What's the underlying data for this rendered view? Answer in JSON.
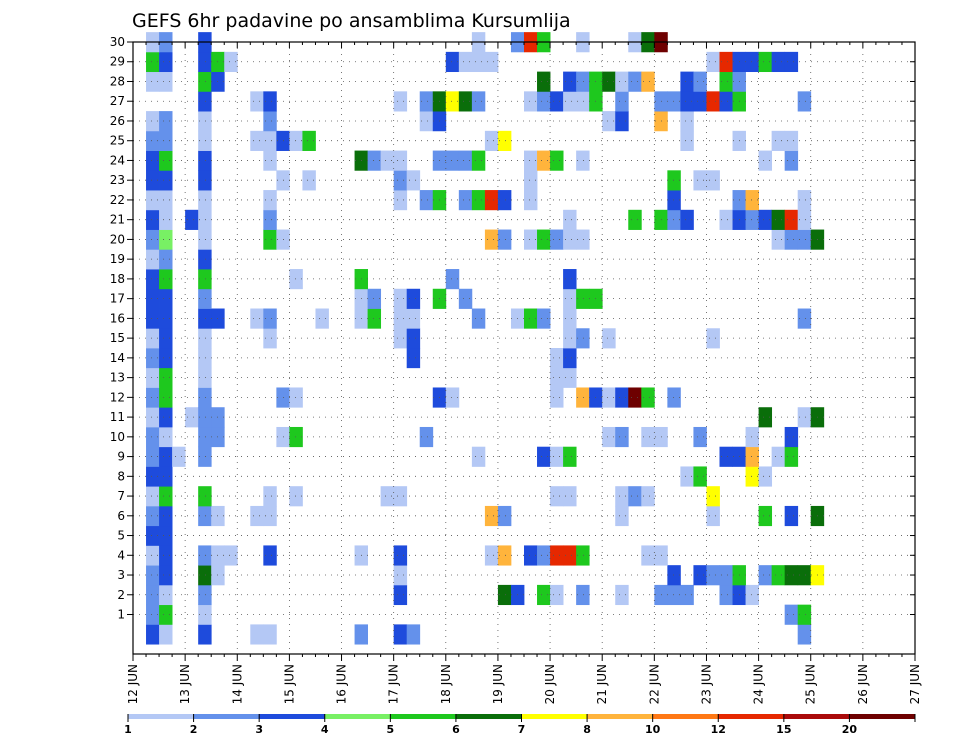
{
  "chart_data": {
    "type": "heatmap",
    "title": "GEFS 6hr padavine po ansamblima Kursumlija",
    "xlabel": "",
    "ylabel": "",
    "x_ticks": [
      "12 JUN",
      "13 JUN",
      "14 JUN",
      "15 JUN",
      "16 JUN",
      "17 JUN",
      "18 JUN",
      "19 JUN",
      "20 JUN",
      "21 JUN",
      "22 JUN",
      "23 JUN",
      "24 JUN",
      "25 JUN",
      "26 JUN",
      "27 JUN"
    ],
    "x_range": [
      "12 JUN 00UTC",
      "27 JUN 00UTC"
    ],
    "steps_per_day": 4,
    "y_ticks": [
      1,
      2,
      3,
      4,
      5,
      6,
      7,
      8,
      9,
      10,
      11,
      12,
      13,
      14,
      15,
      16,
      17,
      18,
      19,
      20,
      21,
      22,
      23,
      24,
      25,
      26,
      27,
      28,
      29,
      30
    ],
    "ylim": [
      0,
      30
    ],
    "grid": "dotted",
    "legend": {
      "placement": "bottom",
      "labels": [
        "1",
        "2",
        "3",
        "4",
        "5",
        "6",
        "7",
        "8",
        "10",
        "12",
        "15",
        "20"
      ],
      "colors": [
        "#b4c8f5",
        "#6491eb",
        "#1e4bdc",
        "#78f064",
        "#1ec81e",
        "#0a6e0a",
        "#ffff00",
        "#ffb43c",
        "#ff7814",
        "#e62800",
        "#aa0a0a",
        "#6e0000"
      ]
    },
    "cells": {
      "30": [
        [
          1,
          1
        ],
        [
          2,
          2
        ],
        [
          5,
          3
        ],
        [
          26,
          1
        ],
        [
          29,
          2
        ],
        [
          30,
          10
        ],
        [
          31,
          5
        ],
        [
          34,
          1
        ],
        [
          38,
          1
        ],
        [
          39,
          6
        ],
        [
          40,
          12
        ]
      ],
      "29": [
        [
          1,
          5
        ],
        [
          2,
          3
        ],
        [
          5,
          3
        ],
        [
          6,
          5
        ],
        [
          7,
          1
        ],
        [
          24,
          3
        ],
        [
          25,
          1
        ],
        [
          26,
          1
        ],
        [
          27,
          1
        ],
        [
          44,
          1
        ],
        [
          45,
          10
        ],
        [
          46,
          3
        ],
        [
          47,
          3
        ],
        [
          48,
          5
        ],
        [
          49,
          3
        ],
        [
          50,
          3
        ]
      ],
      "28": [
        [
          1,
          1
        ],
        [
          2,
          1
        ],
        [
          5,
          5
        ],
        [
          6,
          3
        ],
        [
          31,
          6
        ],
        [
          33,
          3
        ],
        [
          34,
          2
        ],
        [
          35,
          5
        ],
        [
          36,
          6
        ],
        [
          37,
          1
        ],
        [
          38,
          2
        ],
        [
          39,
          8
        ],
        [
          42,
          3
        ],
        [
          43,
          2
        ],
        [
          45,
          5
        ],
        [
          46,
          2
        ]
      ],
      "27": [
        [
          5,
          3
        ],
        [
          9,
          1
        ],
        [
          10,
          3
        ],
        [
          20,
          1
        ],
        [
          22,
          2
        ],
        [
          23,
          6
        ],
        [
          24,
          7
        ],
        [
          25,
          6
        ],
        [
          26,
          2
        ],
        [
          30,
          1
        ],
        [
          31,
          2
        ],
        [
          32,
          3
        ],
        [
          33,
          1
        ],
        [
          34,
          1
        ],
        [
          35,
          5
        ],
        [
          37,
          2
        ],
        [
          40,
          2
        ],
        [
          41,
          2
        ],
        [
          42,
          3
        ],
        [
          43,
          3
        ],
        [
          44,
          10
        ],
        [
          45,
          3
        ],
        [
          46,
          5
        ],
        [
          51,
          2
        ]
      ],
      "26": [
        [
          1,
          1
        ],
        [
          2,
          2
        ],
        [
          5,
          1
        ],
        [
          10,
          2
        ],
        [
          22,
          1
        ],
        [
          23,
          3
        ],
        [
          36,
          1
        ],
        [
          37,
          3
        ],
        [
          40,
          8
        ],
        [
          42,
          1
        ]
      ],
      "25": [
        [
          1,
          2
        ],
        [
          2,
          2
        ],
        [
          5,
          1
        ],
        [
          9,
          1
        ],
        [
          10,
          1
        ],
        [
          11,
          3
        ],
        [
          12,
          1
        ],
        [
          13,
          5
        ],
        [
          27,
          1
        ],
        [
          28,
          7
        ],
        [
          42,
          1
        ],
        [
          46,
          1
        ],
        [
          49,
          1
        ],
        [
          50,
          1
        ]
      ],
      "24": [
        [
          1,
          3
        ],
        [
          2,
          5
        ],
        [
          5,
          3
        ],
        [
          10,
          1
        ],
        [
          17,
          6
        ],
        [
          18,
          2
        ],
        [
          19,
          1
        ],
        [
          20,
          1
        ],
        [
          23,
          2
        ],
        [
          24,
          2
        ],
        [
          25,
          2
        ],
        [
          26,
          5
        ],
        [
          30,
          1
        ],
        [
          31,
          8
        ],
        [
          32,
          5
        ],
        [
          34,
          1
        ],
        [
          48,
          1
        ],
        [
          50,
          2
        ]
      ],
      "23": [
        [
          1,
          3
        ],
        [
          2,
          3
        ],
        [
          5,
          3
        ],
        [
          11,
          1
        ],
        [
          13,
          1
        ],
        [
          20,
          2
        ],
        [
          21,
          1
        ],
        [
          30,
          1
        ],
        [
          41,
          5
        ],
        [
          43,
          1
        ],
        [
          44,
          1
        ]
      ],
      "22": [
        [
          1,
          1
        ],
        [
          2,
          1
        ],
        [
          5,
          1
        ],
        [
          10,
          1
        ],
        [
          20,
          1
        ],
        [
          22,
          2
        ],
        [
          23,
          5
        ],
        [
          25,
          2
        ],
        [
          26,
          5
        ],
        [
          27,
          10
        ],
        [
          28,
          3
        ],
        [
          30,
          1
        ],
        [
          41,
          3
        ],
        [
          46,
          2
        ],
        [
          47,
          8
        ],
        [
          51,
          1
        ]
      ],
      "21": [
        [
          1,
          3
        ],
        [
          2,
          1
        ],
        [
          4,
          3
        ],
        [
          5,
          1
        ],
        [
          10,
          2
        ],
        [
          33,
          1
        ],
        [
          38,
          5
        ],
        [
          40,
          5
        ],
        [
          41,
          2
        ],
        [
          42,
          3
        ],
        [
          45,
          1
        ],
        [
          46,
          3
        ],
        [
          47,
          2
        ],
        [
          48,
          3
        ],
        [
          49,
          6
        ],
        [
          50,
          10
        ],
        [
          51,
          1
        ]
      ],
      "20": [
        [
          1,
          2
        ],
        [
          2,
          4
        ],
        [
          5,
          1
        ],
        [
          10,
          5
        ],
        [
          11,
          1
        ],
        [
          27,
          8
        ],
        [
          28,
          2
        ],
        [
          30,
          1
        ],
        [
          31,
          5
        ],
        [
          32,
          2
        ],
        [
          33,
          1
        ],
        [
          34,
          1
        ],
        [
          49,
          1
        ],
        [
          50,
          2
        ],
        [
          51,
          2
        ],
        [
          52,
          6
        ]
      ],
      "19": [
        [
          1,
          1
        ],
        [
          2,
          2
        ],
        [
          5,
          3
        ]
      ],
      "18": [
        [
          1,
          3
        ],
        [
          2,
          5
        ],
        [
          5,
          5
        ],
        [
          12,
          1
        ],
        [
          17,
          5
        ],
        [
          24,
          2
        ],
        [
          33,
          3
        ]
      ],
      "17": [
        [
          1,
          3
        ],
        [
          2,
          3
        ],
        [
          5,
          2
        ],
        [
          17,
          1
        ],
        [
          18,
          2
        ],
        [
          20,
          1
        ],
        [
          21,
          3
        ],
        [
          23,
          5
        ],
        [
          25,
          2
        ],
        [
          33,
          1
        ],
        [
          34,
          5
        ],
        [
          35,
          5
        ]
      ],
      "16": [
        [
          1,
          3
        ],
        [
          2,
          3
        ],
        [
          5,
          3
        ],
        [
          6,
          3
        ],
        [
          9,
          1
        ],
        [
          10,
          2
        ],
        [
          14,
          1
        ],
        [
          17,
          1
        ],
        [
          18,
          5
        ],
        [
          20,
          1
        ],
        [
          21,
          1
        ],
        [
          26,
          2
        ],
        [
          29,
          1
        ],
        [
          30,
          5
        ],
        [
          31,
          2
        ],
        [
          33,
          1
        ],
        [
          51,
          2
        ]
      ],
      "15": [
        [
          1,
          1
        ],
        [
          2,
          3
        ],
        [
          5,
          1
        ],
        [
          10,
          1
        ],
        [
          20,
          1
        ],
        [
          21,
          3
        ],
        [
          33,
          1
        ],
        [
          34,
          2
        ],
        [
          36,
          1
        ],
        [
          44,
          1
        ]
      ],
      "14": [
        [
          1,
          2
        ],
        [
          2,
          3
        ],
        [
          5,
          1
        ],
        [
          21,
          3
        ],
        [
          32,
          1
        ],
        [
          33,
          3
        ]
      ],
      "13": [
        [
          1,
          1
        ],
        [
          2,
          5
        ],
        [
          5,
          1
        ],
        [
          32,
          1
        ],
        [
          33,
          1
        ]
      ],
      "12": [
        [
          1,
          2
        ],
        [
          2,
          5
        ],
        [
          5,
          2
        ],
        [
          11,
          2
        ],
        [
          12,
          1
        ],
        [
          23,
          3
        ],
        [
          24,
          1
        ],
        [
          32,
          1
        ],
        [
          34,
          8
        ],
        [
          35,
          3
        ],
        [
          36,
          1
        ],
        [
          37,
          3
        ],
        [
          38,
          12
        ],
        [
          39,
          5
        ],
        [
          41,
          2
        ]
      ],
      "11": [
        [
          1,
          1
        ],
        [
          2,
          3
        ],
        [
          4,
          1
        ],
        [
          5,
          2
        ],
        [
          6,
          2
        ],
        [
          48,
          6
        ],
        [
          51,
          1
        ],
        [
          52,
          6
        ]
      ],
      "10": [
        [
          1,
          2
        ],
        [
          2,
          1
        ],
        [
          5,
          2
        ],
        [
          6,
          2
        ],
        [
          11,
          1
        ],
        [
          12,
          5
        ],
        [
          22,
          2
        ],
        [
          36,
          1
        ],
        [
          37,
          2
        ],
        [
          39,
          1
        ],
        [
          40,
          1
        ],
        [
          43,
          2
        ],
        [
          47,
          1
        ],
        [
          50,
          3
        ]
      ],
      "9": [
        [
          1,
          2
        ],
        [
          2,
          3
        ],
        [
          3,
          1
        ],
        [
          5,
          2
        ],
        [
          26,
          1
        ],
        [
          31,
          3
        ],
        [
          32,
          1
        ],
        [
          33,
          5
        ],
        [
          45,
          3
        ],
        [
          46,
          3
        ],
        [
          47,
          8
        ],
        [
          49,
          1
        ],
        [
          50,
          5
        ]
      ],
      "8": [
        [
          1,
          3
        ],
        [
          2,
          3
        ],
        [
          42,
          1
        ],
        [
          43,
          5
        ],
        [
          47,
          7
        ],
        [
          48,
          1
        ]
      ],
      "7": [
        [
          1,
          1
        ],
        [
          2,
          5
        ],
        [
          5,
          5
        ],
        [
          10,
          1
        ],
        [
          12,
          1
        ],
        [
          19,
          1
        ],
        [
          20,
          1
        ],
        [
          32,
          1
        ],
        [
          33,
          1
        ],
        [
          37,
          1
        ],
        [
          38,
          2
        ],
        [
          39,
          1
        ],
        [
          44,
          7
        ]
      ],
      "6": [
        [
          1,
          2
        ],
        [
          2,
          3
        ],
        [
          5,
          2
        ],
        [
          6,
          1
        ],
        [
          9,
          1
        ],
        [
          10,
          1
        ],
        [
          27,
          8
        ],
        [
          28,
          2
        ],
        [
          37,
          1
        ],
        [
          44,
          1
        ],
        [
          48,
          5
        ],
        [
          50,
          3
        ],
        [
          52,
          6
        ]
      ],
      "5": [
        [
          1,
          3
        ],
        [
          2,
          3
        ]
      ],
      "4": [
        [
          1,
          1
        ],
        [
          2,
          3
        ],
        [
          5,
          2
        ],
        [
          6,
          1
        ],
        [
          7,
          1
        ],
        [
          10,
          3
        ],
        [
          17,
          1
        ],
        [
          20,
          3
        ],
        [
          27,
          1
        ],
        [
          28,
          8
        ],
        [
          30,
          3
        ],
        [
          31,
          2
        ],
        [
          32,
          10
        ],
        [
          33,
          10
        ],
        [
          34,
          5
        ],
        [
          39,
          1
        ],
        [
          40,
          1
        ]
      ],
      "3": [
        [
          1,
          2
        ],
        [
          2,
          3
        ],
        [
          5,
          6
        ],
        [
          6,
          1
        ],
        [
          20,
          1
        ],
        [
          41,
          3
        ],
        [
          43,
          3
        ],
        [
          44,
          2
        ],
        [
          45,
          2
        ],
        [
          46,
          5
        ],
        [
          48,
          2
        ],
        [
          49,
          5
        ],
        [
          50,
          6
        ],
        [
          51,
          6
        ],
        [
          52,
          7
        ]
      ],
      "2": [
        [
          1,
          2
        ],
        [
          2,
          1
        ],
        [
          5,
          2
        ],
        [
          20,
          3
        ],
        [
          28,
          6
        ],
        [
          29,
          3
        ],
        [
          31,
          5
        ],
        [
          32,
          1
        ],
        [
          34,
          2
        ],
        [
          37,
          1
        ],
        [
          40,
          2
        ],
        [
          41,
          2
        ],
        [
          42,
          2
        ],
        [
          45,
          2
        ],
        [
          46,
          3
        ],
        [
          47,
          1
        ]
      ],
      "1": [
        [
          1,
          2
        ],
        [
          2,
          5
        ],
        [
          5,
          1
        ],
        [
          50,
          2
        ],
        [
          51,
          5
        ]
      ],
      "0": [
        [
          1,
          3
        ],
        [
          2,
          1
        ],
        [
          5,
          3
        ],
        [
          9,
          1
        ],
        [
          10,
          1
        ],
        [
          17,
          2
        ],
        [
          20,
          3
        ],
        [
          21,
          2
        ],
        [
          51,
          2
        ]
      ]
    }
  }
}
